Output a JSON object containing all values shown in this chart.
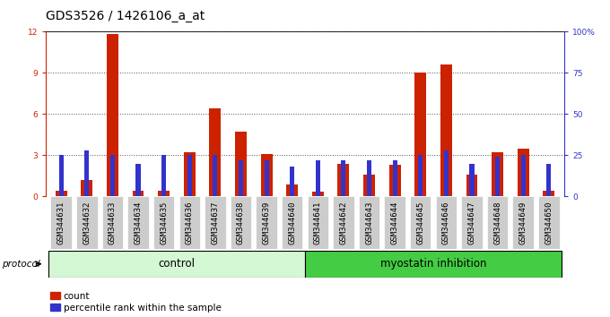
{
  "title": "GDS3526 / 1426106_a_at",
  "samples": [
    "GSM344631",
    "GSM344632",
    "GSM344633",
    "GSM344634",
    "GSM344635",
    "GSM344636",
    "GSM344637",
    "GSM344638",
    "GSM344639",
    "GSM344640",
    "GSM344641",
    "GSM344642",
    "GSM344643",
    "GSM344644",
    "GSM344645",
    "GSM344646",
    "GSM344647",
    "GSM344648",
    "GSM344649",
    "GSM344650"
  ],
  "counts": [
    0.45,
    1.2,
    11.8,
    0.4,
    0.45,
    3.2,
    6.4,
    4.7,
    3.1,
    0.9,
    0.35,
    2.4,
    1.6,
    2.3,
    9.0,
    9.6,
    1.6,
    3.2,
    3.5,
    0.45
  ],
  "percentile_ranks": [
    25,
    28,
    25,
    20,
    25,
    25,
    25,
    22,
    22,
    18,
    22,
    22,
    22,
    22,
    25,
    28,
    20,
    24,
    25,
    20
  ],
  "control_count": 10,
  "myostatin_count": 10,
  "group_labels": [
    "control",
    "myostatin inhibition"
  ],
  "ylim_left": [
    0,
    12
  ],
  "ylim_right": [
    0,
    100
  ],
  "yticks_left": [
    0,
    3,
    6,
    9,
    12
  ],
  "yticks_right": [
    0,
    25,
    50,
    75,
    100
  ],
  "ytick_right_labels": [
    "0",
    "25",
    "50",
    "75",
    "100%"
  ],
  "bar_color_red": "#cc2200",
  "bar_color_blue": "#3333cc",
  "control_bg": "#d4f7d4",
  "myostatin_bg": "#44cc44",
  "plot_bg": "#ffffff",
  "xlabel_bg": "#cccccc",
  "title_fontsize": 10,
  "tick_fontsize": 6.5,
  "group_fontsize": 8.5,
  "legend_fontsize": 7.5,
  "protocol_fontsize": 7.5
}
